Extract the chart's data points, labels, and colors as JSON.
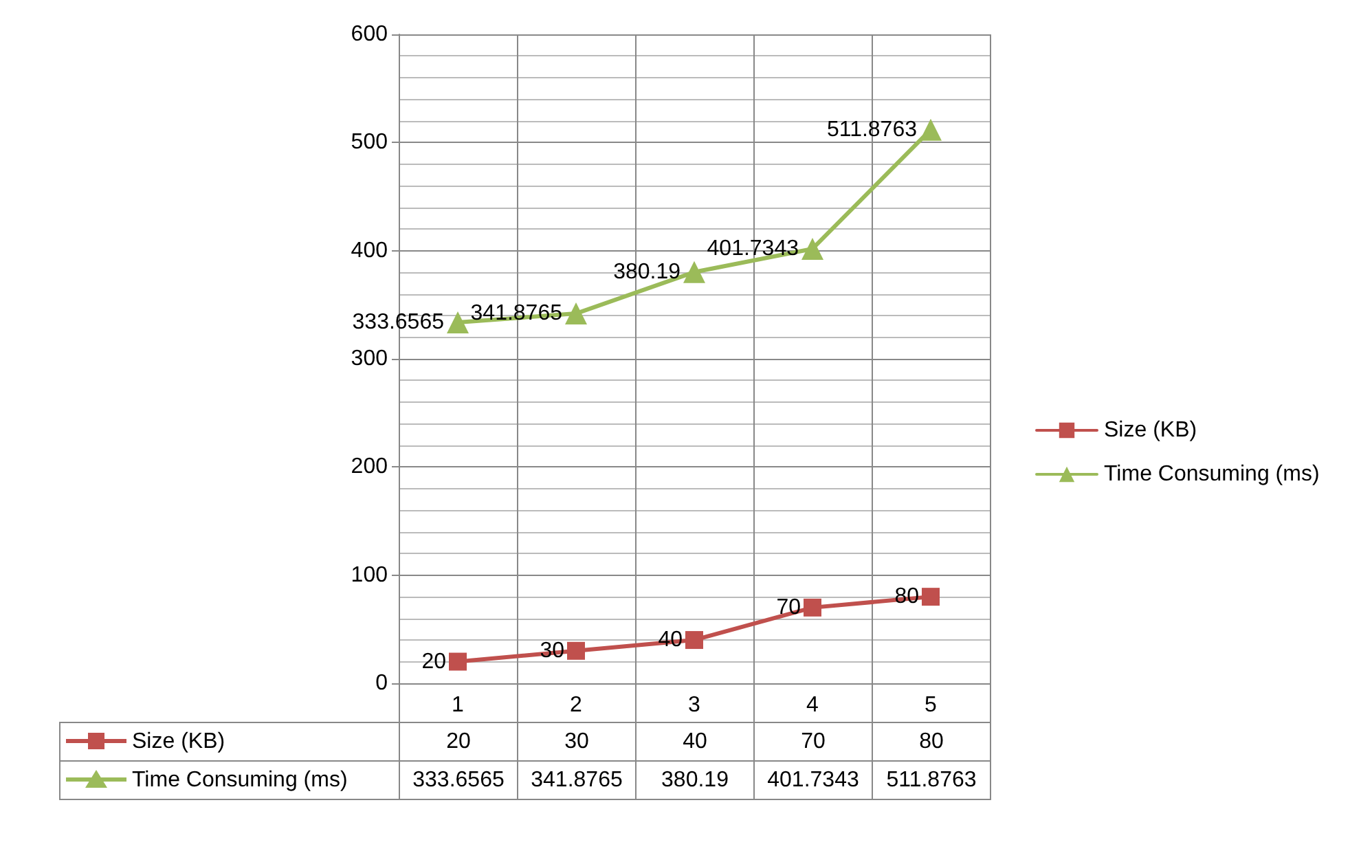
{
  "chart_data": {
    "type": "line",
    "categories": [
      "1",
      "2",
      "3",
      "4",
      "5"
    ],
    "series": [
      {
        "name": "Size (KB)",
        "color": "#c0504d",
        "marker": "square",
        "values": [
          20,
          30,
          40,
          70,
          80
        ],
        "value_labels": [
          "20",
          "30",
          "40",
          "70",
          "80"
        ]
      },
      {
        "name": "Time Consuming (ms)",
        "color": "#9bbb59",
        "marker": "triangle",
        "values": [
          333.6565,
          341.8765,
          380.19,
          401.7343,
          511.8763
        ],
        "value_labels": [
          "333.6565",
          "341.8765",
          "380.19",
          "401.7343",
          "511.8763"
        ]
      }
    ],
    "ylim": [
      0,
      600
    ],
    "yticks": [
      0,
      100,
      200,
      300,
      400,
      500,
      600
    ],
    "grid": true,
    "legend": "right",
    "data_labels": true,
    "line_style": "solid"
  }
}
